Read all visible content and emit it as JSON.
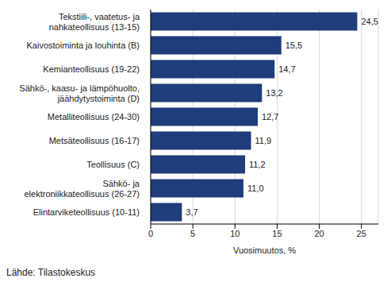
{
  "chart_data": {
    "type": "bar",
    "orientation": "horizontal",
    "categories": [
      "Tekstiili-, vaatetus- ja\nnahkateollisuus (13-15)",
      "Kaivostoiminta ja louhinta (B)",
      "Kemianteollisuus (19-22)",
      "Sähkö-, kaasu- ja lämpöhuolto,\njäähdytystoiminta (D)",
      "Metalliteollisuus (24-30)",
      "Metsäteollisuus (16-17)",
      "Teollisuus (C)",
      "Sähkö- ja\nelektroniikkateollisuus (26-27)",
      "Elintarviketeollisuus (10-11)"
    ],
    "values": [
      24.5,
      15.5,
      14.7,
      13.2,
      12.7,
      11.9,
      11.2,
      11.0,
      3.7
    ],
    "value_labels": [
      "24,5",
      "15,5",
      "14,7",
      "13,2",
      "12,7",
      "11,9",
      "11,2",
      "11,0",
      "3,7"
    ],
    "color": "#1f3d7a",
    "xlim": [
      0,
      27
    ],
    "xticks": [
      0,
      5,
      10,
      15,
      20,
      25
    ],
    "xlabel": "Vuosimuutos, %",
    "source": "Lähde: Tilastokeskus",
    "grid": true,
    "data_labels": true
  }
}
